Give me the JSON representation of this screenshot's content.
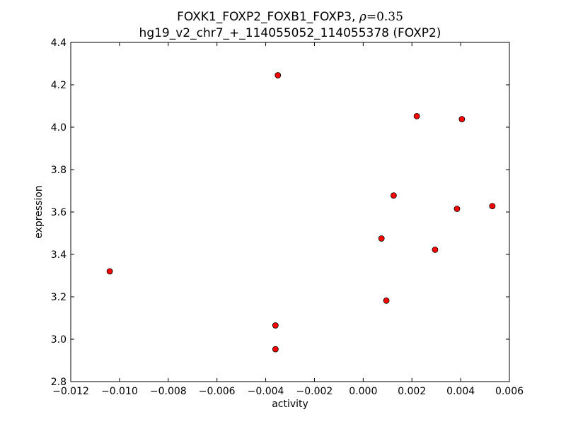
{
  "chart_data": {
    "type": "scatter",
    "title_prefix": "FOXK1_FOXP2_FOXB1_FOXP3, ",
    "title_symbol": "ρ",
    "title_relation": "=",
    "title_value": "0.35",
    "subtitle": "hg19_v2_chr7_+_114055052_114055378 (FOXP2)",
    "xlabel": "activity",
    "ylabel": "expression",
    "xlim": [
      -0.012,
      0.006
    ],
    "ylim": [
      2.8,
      4.4
    ],
    "xticks": [
      -0.012,
      -0.01,
      -0.008,
      -0.006,
      -0.004,
      -0.002,
      0.0,
      0.002,
      0.004,
      0.006
    ],
    "xtick_labels": [
      "−0.012",
      "−0.010",
      "−0.008",
      "−0.006",
      "−0.004",
      "−0.002",
      "0.000",
      "0.002",
      "0.004",
      "0.006"
    ],
    "yticks": [
      2.8,
      3.0,
      3.2,
      3.4,
      3.6,
      3.8,
      4.0,
      4.2,
      4.4
    ],
    "ytick_labels": [
      "2.8",
      "3.0",
      "3.2",
      "3.4",
      "3.6",
      "3.8",
      "4.0",
      "4.2",
      "4.4"
    ],
    "grid": false,
    "marker_color": "#ff0000",
    "marker_edge": "#000000",
    "points": [
      {
        "x": -0.0104,
        "y": 3.32
      },
      {
        "x": -0.0035,
        "y": 4.245
      },
      {
        "x": -0.0036,
        "y": 3.065
      },
      {
        "x": -0.0036,
        "y": 2.953
      },
      {
        "x": 0.00075,
        "y": 3.475
      },
      {
        "x": 0.00095,
        "y": 3.182
      },
      {
        "x": 0.00125,
        "y": 3.678
      },
      {
        "x": 0.0022,
        "y": 4.052
      },
      {
        "x": 0.00295,
        "y": 3.422
      },
      {
        "x": 0.00385,
        "y": 3.615
      },
      {
        "x": 0.00405,
        "y": 4.038
      },
      {
        "x": 0.0053,
        "y": 3.628
      }
    ]
  }
}
